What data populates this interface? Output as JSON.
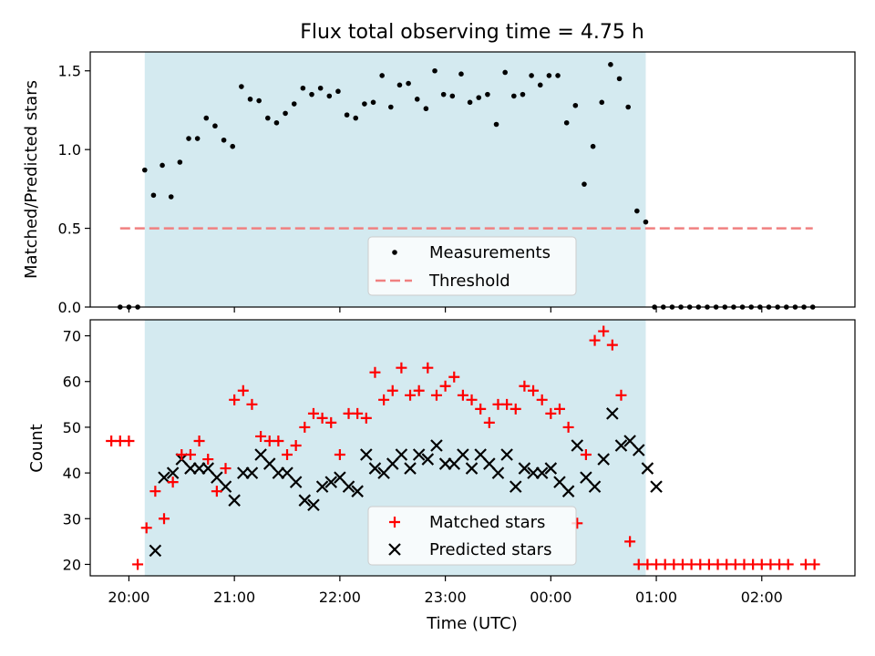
{
  "figure": {
    "title": "Flux total observing time = 4.75 h",
    "xlabel": "Time (UTC)",
    "colors": {
      "shade": "#d4eaf0",
      "measurement": "#000000",
      "threshold": "#f08080",
      "matched": "#ff0000",
      "predicted": "#000000"
    }
  },
  "chart_data": [
    {
      "type": "scatter",
      "panel": "top",
      "ylabel": "Matched/Predicted stars",
      "xlim": [
        "19:38",
        "02:53"
      ],
      "ylim": [
        0,
        1.62
      ],
      "yticks": [
        0.0,
        0.5,
        1.0,
        1.5
      ],
      "ytick_labels": [
        "0.0",
        "0.5",
        "1.0",
        "1.5"
      ],
      "shaded_interval": [
        "20:09",
        "00:54"
      ],
      "legend": {
        "placement": "lower center",
        "entries": [
          "Measurements",
          "Threshold"
        ]
      },
      "series": [
        {
          "name": "Measurements",
          "marker": "dot",
          "x": [
            "19:55",
            "20:00",
            "20:05",
            "20:09",
            "20:14",
            "20:19",
            "20:24",
            "20:29",
            "20:34",
            "20:39",
            "20:44",
            "20:49",
            "20:54",
            "20:59",
            "21:04",
            "21:09",
            "21:14",
            "21:19",
            "21:24",
            "21:29",
            "21:34",
            "21:39",
            "21:44",
            "21:49",
            "21:54",
            "21:59",
            "22:04",
            "22:09",
            "22:14",
            "22:19",
            "22:24",
            "22:29",
            "22:34",
            "22:39",
            "22:44",
            "22:49",
            "22:54",
            "22:59",
            "23:04",
            "23:09",
            "23:14",
            "23:19",
            "23:24",
            "23:29",
            "23:34",
            "23:39",
            "23:44",
            "23:49",
            "23:54",
            "23:59",
            "00:04",
            "00:09",
            "00:14",
            "00:19",
            "00:24",
            "00:29",
            "00:34",
            "00:39",
            "00:44",
            "00:49",
            "00:54",
            "00:59",
            "01:04",
            "01:09",
            "01:14",
            "01:19",
            "01:24",
            "01:29",
            "01:34",
            "01:39",
            "01:44",
            "01:49",
            "01:54",
            "01:59",
            "02:04",
            "02:09",
            "02:14",
            "02:19",
            "02:24",
            "02:29"
          ],
          "y": [
            0,
            0,
            0,
            0.87,
            0.71,
            0.9,
            0.7,
            0.92,
            1.07,
            1.07,
            1.2,
            1.15,
            1.06,
            1.02,
            1.4,
            1.32,
            1.31,
            1.2,
            1.17,
            1.23,
            1.29,
            1.39,
            1.35,
            1.39,
            1.34,
            1.37,
            1.22,
            1.2,
            1.29,
            1.3,
            1.47,
            1.27,
            1.41,
            1.42,
            1.32,
            1.26,
            1.5,
            1.35,
            1.34,
            1.48,
            1.3,
            1.33,
            1.35,
            1.16,
            1.49,
            1.34,
            1.35,
            1.47,
            1.41,
            1.47,
            1.47,
            1.17,
            1.28,
            0.78,
            1.02,
            1.3,
            1.54,
            1.45,
            1.27,
            0.61,
            0.54,
            0,
            0,
            0,
            0,
            0,
            0,
            0,
            0,
            0,
            0,
            0,
            0,
            0,
            0,
            0,
            0,
            0,
            0,
            0
          ]
        },
        {
          "name": "Threshold",
          "style": "dashed",
          "x": [
            "19:55",
            "02:29"
          ],
          "y": [
            0.5,
            0.5
          ]
        }
      ]
    },
    {
      "type": "scatter",
      "panel": "bottom",
      "ylabel": "Count",
      "xlabel": "Time (UTC)",
      "xlim": [
        "19:38",
        "02:53"
      ],
      "xticks": [
        "20:00",
        "21:00",
        "22:00",
        "23:00",
        "00:00",
        "01:00",
        "02:00"
      ],
      "ylim": [
        17.5,
        73.5
      ],
      "yticks": [
        20,
        30,
        40,
        50,
        60,
        70
      ],
      "shaded_interval": [
        "20:09",
        "00:54"
      ],
      "legend": {
        "placement": "lower center",
        "entries": [
          "Matched stars",
          "Predicted stars"
        ]
      },
      "series": [
        {
          "name": "Matched stars",
          "marker": "plus",
          "x": [
            "19:50",
            "19:55",
            "20:00",
            "20:05",
            "20:10",
            "20:15",
            "20:20",
            "20:25",
            "20:30",
            "20:35",
            "20:40",
            "20:45",
            "20:50",
            "20:55",
            "21:00",
            "21:05",
            "21:10",
            "21:15",
            "21:20",
            "21:25",
            "21:30",
            "21:35",
            "21:40",
            "21:45",
            "21:50",
            "21:55",
            "22:00",
            "22:05",
            "22:10",
            "22:15",
            "22:20",
            "22:25",
            "22:30",
            "22:35",
            "22:40",
            "22:45",
            "22:50",
            "22:55",
            "23:00",
            "23:05",
            "23:10",
            "23:15",
            "23:20",
            "23:25",
            "23:30",
            "23:35",
            "23:40",
            "23:45",
            "23:50",
            "23:55",
            "00:00",
            "00:05",
            "00:10",
            "00:15",
            "00:20",
            "00:25",
            "00:30",
            "00:35",
            "00:40",
            "00:45",
            "00:50",
            "00:55",
            "01:00",
            "01:05",
            "01:10",
            "01:15",
            "01:20",
            "01:25",
            "01:30",
            "01:35",
            "01:40",
            "01:45",
            "01:50",
            "01:55",
            "02:00",
            "02:05",
            "02:10",
            "02:15",
            "02:25",
            "02:30"
          ],
          "y": [
            47,
            47,
            47,
            20,
            28,
            36,
            30,
            38,
            44,
            44,
            47,
            43,
            36,
            41,
            56,
            58,
            55,
            48,
            47,
            47,
            44,
            46,
            50,
            53,
            52,
            51,
            44,
            53,
            53,
            52,
            62,
            56,
            58,
            63,
            57,
            58,
            63,
            57,
            59,
            61,
            57,
            56,
            54,
            51,
            55,
            55,
            54,
            59,
            58,
            56,
            53,
            54,
            50,
            29,
            44,
            69,
            71,
            68,
            57,
            25,
            20,
            20,
            20,
            20,
            20,
            20,
            20,
            20,
            20,
            20,
            20,
            20,
            20,
            20,
            20,
            20,
            20,
            20,
            20,
            20
          ]
        },
        {
          "name": "Predicted stars",
          "marker": "x",
          "x": [
            "20:15",
            "20:20",
            "20:25",
            "20:30",
            "20:35",
            "20:40",
            "20:45",
            "20:50",
            "20:55",
            "21:00",
            "21:05",
            "21:10",
            "21:15",
            "21:20",
            "21:25",
            "21:30",
            "21:35",
            "21:40",
            "21:45",
            "21:50",
            "21:55",
            "22:00",
            "22:05",
            "22:10",
            "22:15",
            "22:20",
            "22:25",
            "22:30",
            "22:35",
            "22:40",
            "22:45",
            "22:50",
            "22:55",
            "23:00",
            "23:05",
            "23:10",
            "23:15",
            "23:20",
            "23:25",
            "23:30",
            "23:35",
            "23:40",
            "23:45",
            "23:50",
            "23:55",
            "00:00",
            "00:05",
            "00:10",
            "00:15",
            "00:20",
            "00:25",
            "00:30",
            "00:35",
            "00:40",
            "00:45",
            "00:50",
            "00:55",
            "01:00"
          ],
          "y": [
            23,
            39,
            40,
            43,
            41,
            41,
            41,
            39,
            37,
            34,
            40,
            40,
            44,
            42,
            40,
            40,
            38,
            34,
            33,
            37,
            38,
            39,
            37,
            36,
            44,
            41,
            40,
            42,
            44,
            41,
            44,
            43,
            46,
            42,
            42,
            44,
            41,
            44,
            42,
            40,
            44,
            37,
            41,
            40,
            40,
            41,
            38,
            36,
            46,
            39,
            37,
            43,
            53,
            46,
            47,
            45,
            41,
            37
          ]
        }
      ]
    }
  ]
}
